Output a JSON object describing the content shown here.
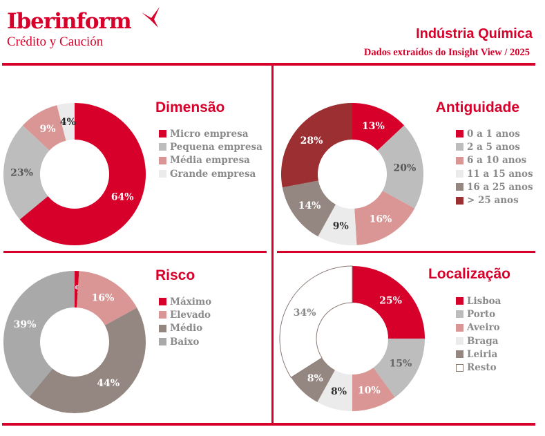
{
  "header": {
    "logo_main": "Iberinform",
    "logo_sub": "Crédito y Caución",
    "title": "Indústria Química",
    "subtitle": "Dados extraídos do Insight View / 2025"
  },
  "colors": {
    "brand": "#d7002a",
    "label": "#8a8a8a"
  },
  "chart_data": [
    {
      "type": "pie",
      "title": "Dimensão",
      "categories": [
        "Micro empresa",
        "Pequena empresa",
        "Média empresa",
        "Grande empresa"
      ],
      "values": [
        64,
        23,
        9,
        4
      ],
      "labels": [
        "64%",
        "23%",
        "9%",
        "4%"
      ],
      "colors": [
        "#d7002a",
        "#bdbdbd",
        "#d99694",
        "#ebebeb"
      ],
      "label_colors": [
        "#fff",
        "#555",
        "#fff",
        "#222"
      ],
      "legend": "right"
    },
    {
      "type": "pie",
      "title": "Antiguidade",
      "categories": [
        "0 a 1 anos",
        "2 a 5 anos",
        "6 a 10 anos",
        "11 a 15 anos",
        "16 a 25 anos",
        "> 25 anos"
      ],
      "values": [
        13,
        20,
        16,
        9,
        14,
        28
      ],
      "labels": [
        "13%",
        "20%",
        "16%",
        "9%",
        "14%",
        "28%"
      ],
      "colors": [
        "#d7002a",
        "#bdbdbd",
        "#d99694",
        "#ebebeb",
        "#948680",
        "#9b2f31"
      ],
      "label_colors": [
        "#fff",
        "#555",
        "#fff",
        "#333",
        "#fff",
        "#fff"
      ],
      "legend": "right"
    },
    {
      "type": "pie",
      "title": "Risco",
      "categories": [
        "Máximo",
        "Elevado",
        "Médio",
        "Baixo"
      ],
      "values": [
        1,
        16,
        44,
        39
      ],
      "labels": [
        "1%",
        "16%",
        "44%",
        "39%"
      ],
      "colors": [
        "#d7002a",
        "#d99694",
        "#948680",
        "#a9a9a9"
      ],
      "label_colors": [
        "#fff",
        "#fff",
        "#fff",
        "#fff"
      ],
      "legend": "right"
    },
    {
      "type": "pie",
      "title": "Localização",
      "categories": [
        "Lisboa",
        "Porto",
        "Aveiro",
        "Braga",
        "Leiria",
        "Resto"
      ],
      "values": [
        25,
        15,
        10,
        8,
        8,
        34
      ],
      "labels": [
        "25%",
        "15%",
        "10%",
        "8%",
        "8%",
        "34%"
      ],
      "colors": [
        "#d7002a",
        "#bdbdbd",
        "#d99694",
        "#ebebeb",
        "#948680",
        "#ffffff"
      ],
      "label_colors": [
        "#fff",
        "#666",
        "#fff",
        "#333",
        "#fff",
        "#888"
      ],
      "legend": "right"
    }
  ]
}
